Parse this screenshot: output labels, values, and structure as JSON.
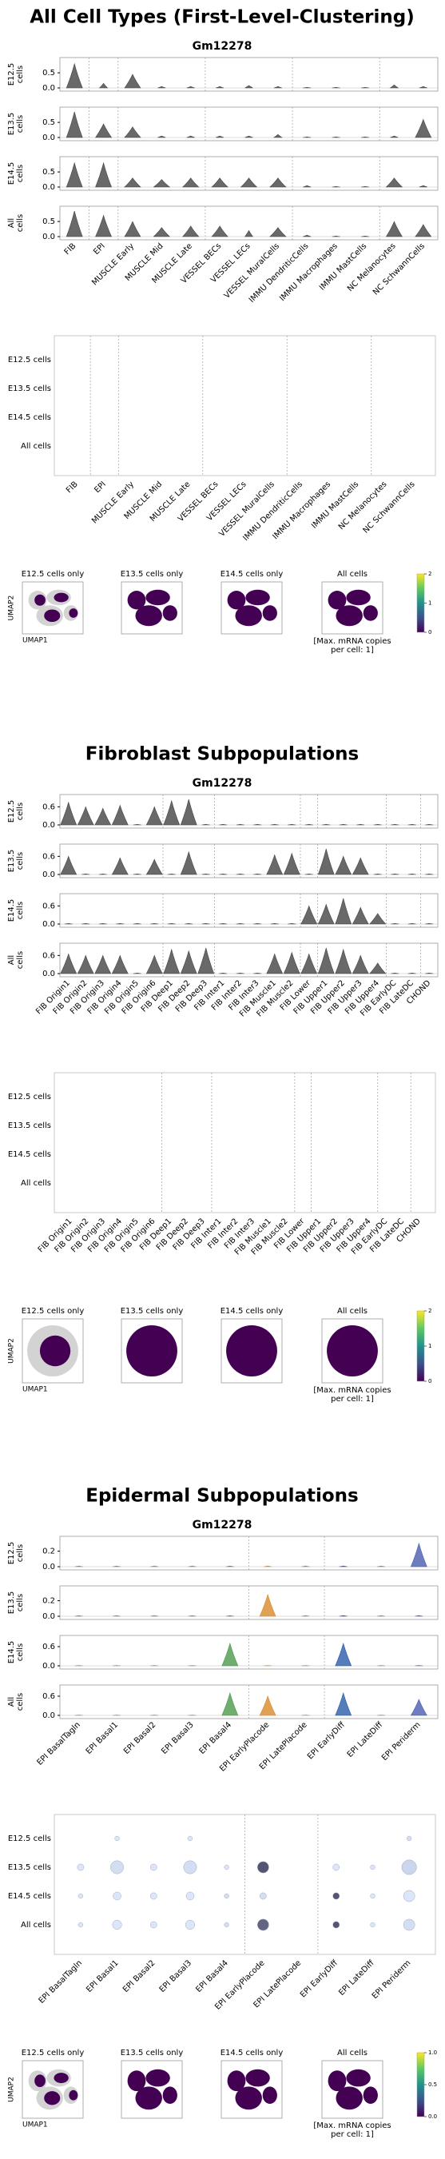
{
  "sections": [
    {
      "title": "All Cell Types (First-Level-Clustering)",
      "gene": "Gm12278",
      "violin": {
        "color": "#444444",
        "categories": [
          "FIB",
          "EPI",
          "MUSCLE Early",
          "MUSCLE Mid",
          "MUSCLE Late",
          "VESSEL BECs",
          "VESSEL LECs",
          "VESSEL MuralCells",
          "IMMU DendriticCells",
          "IMMU Macrophages",
          "IMMU MastCells",
          "NC Melanocytes",
          "NC SchwannCells"
        ],
        "rows": [
          {
            "label": [
              "E12.5",
              "cells"
            ],
            "ylim": [
              0,
              0.9
            ],
            "yticks": [
              {
                "value": 0,
                "label": "0.0"
              },
              0.5
            ],
            "values": [
              0.8,
              0.15,
              0.45,
              0.05,
              0.05,
              0.05,
              0.08,
              0.05,
              0.02,
              0.02,
              0.02,
              0.1,
              0.05
            ]
          },
          {
            "label": [
              "E13.5",
              "cells"
            ],
            "ylim": [
              0,
              0.9
            ],
            "yticks": [
              {
                "value": 0,
                "label": "0.0"
              },
              0.5
            ],
            "values": [
              0.85,
              0.45,
              0.35,
              0.05,
              0.05,
              0.05,
              0.05,
              0.1,
              0.02,
              0.02,
              0.02,
              0.05,
              0.6
            ]
          },
          {
            "label": [
              "E14.5",
              "cells"
            ],
            "ylim": [
              0,
              0.9
            ],
            "yticks": [
              {
                "value": 0,
                "label": "0.0"
              },
              0.5
            ],
            "values": [
              0.8,
              0.8,
              0.3,
              0.25,
              0.3,
              0.3,
              0.3,
              0.3,
              0.05,
              0.02,
              0.02,
              0.3,
              0.05
            ]
          },
          {
            "label": [
              "All",
              "cells"
            ],
            "ylim": [
              0,
              0.9
            ],
            "yticks": [
              {
                "value": 0,
                "label": "0.0"
              },
              0.5
            ],
            "values": [
              0.85,
              0.7,
              0.5,
              0.3,
              0.35,
              0.35,
              0.2,
              0.3,
              0.05,
              0.02,
              0.02,
              0.5,
              0.4
            ]
          }
        ]
      },
      "dotplot": {
        "rows": [
          "E12.5 cells",
          "E13.5 cells",
          "E14.5 cells",
          "All cells"
        ],
        "categories": [
          "FIB",
          "EPI",
          "MUSCLE Early",
          "MUSCLE Mid",
          "MUSCLE Late",
          "VESSEL BECs",
          "VESSEL LECs",
          "VESSEL MuralCells",
          "IMMU DendriticCells",
          "IMMU Macrophages",
          "IMMU MastCells",
          "NC Melanocytes",
          "NC SchwannCells"
        ]
      },
      "umap": {
        "panels": [
          "E12.5 cells only",
          "E13.5 cells only",
          "E14.5 cells only",
          "All cells"
        ],
        "xlabel": "UMAP1",
        "ylabel": "UMAP2",
        "colorbar_lim": [
          0,
          2
        ],
        "colorbar_ticks": [
          0,
          1,
          2
        ],
        "note": [
          "[Max. mRNA copies",
          "per cell: 1]"
        ]
      }
    },
    {
      "title": "Fibroblast Subpopulations",
      "gene": "Gm12278",
      "violin": {
        "color": "#444444",
        "categories": [
          "FIB Origin1",
          "FIB Origin2",
          "FIB Origin3",
          "FIB Origin4",
          "FIB Origin5",
          "FIB Origin6",
          "FIB Deep1",
          "FIB Deep2",
          "FIB Deep3",
          "FIB Inter1",
          "FIB Inter2",
          "FIB Inter3",
          "FIB Muscle1",
          "FIB Muscle2",
          "FIB Lower",
          "FIB Upper1",
          "FIB Upper2",
          "FIB Upper3",
          "FIB Upper4",
          "FIB EarlyDC",
          "FIB LateDC",
          "CHOND"
        ],
        "rows": [
          {
            "label": [
              "E12.5",
              "cells"
            ],
            "ylim": [
              0,
              0.9
            ],
            "yticks": [
              {
                "value": 0,
                "label": "0.0"
              },
              0.6
            ],
            "values": [
              0.75,
              0.6,
              0.55,
              0.65,
              0.02,
              0.6,
              0.8,
              0.85,
              0.02,
              0.02,
              0.02,
              0.02,
              0.02,
              0.02,
              0.02,
              0.02,
              0.02,
              0.02,
              0.02,
              0.02,
              0.02,
              0.02
            ]
          },
          {
            "label": [
              "E13.5",
              "cells"
            ],
            "ylim": [
              0,
              0.9
            ],
            "yticks": [
              {
                "value": 0,
                "label": "0.0"
              },
              0.6
            ],
            "values": [
              0.6,
              0.02,
              0.02,
              0.55,
              0.02,
              0.5,
              0.02,
              0.75,
              0.02,
              0.02,
              0.02,
              0.02,
              0.65,
              0.7,
              0.02,
              0.85,
              0.6,
              0.55,
              0.02,
              0.02,
              0.02,
              0.02
            ]
          },
          {
            "label": [
              "E14.5",
              "cells"
            ],
            "ylim": [
              0,
              0.9
            ],
            "yticks": [
              {
                "value": 0,
                "label": "0.0"
              },
              0.6
            ],
            "values": [
              0.02,
              0.02,
              0.02,
              0.02,
              0.02,
              0.02,
              0.02,
              0.02,
              0.02,
              0.02,
              0.02,
              0.02,
              0.02,
              0.02,
              0.6,
              0.65,
              0.85,
              0.55,
              0.35,
              0.02,
              0.02,
              0.02
            ]
          },
          {
            "label": [
              "All",
              "cells"
            ],
            "ylim": [
              0,
              0.9
            ],
            "yticks": [
              {
                "value": 0,
                "label": "0.0"
              },
              0.6
            ],
            "values": [
              0.65,
              0.6,
              0.6,
              0.6,
              0.02,
              0.6,
              0.8,
              0.75,
              0.85,
              0.02,
              0.02,
              0.02,
              0.65,
              0.7,
              0.65,
              0.85,
              0.8,
              0.6,
              0.35,
              0.02,
              0.02,
              0.02
            ]
          }
        ]
      },
      "dotplot": {
        "rows": [
          "E12.5 cells",
          "E13.5 cells",
          "E14.5 cells",
          "All cells"
        ],
        "categories": [
          "FIB Origin1",
          "FIB Origin2",
          "FIB Origin3",
          "FIB Origin4",
          "FIB Origin5",
          "FIB Origin6",
          "FIB Deep1",
          "FIB Deep2",
          "FIB Deep3",
          "FIB Inter1",
          "FIB Inter2",
          "FIB Inter3",
          "FIB Muscle1",
          "FIB Muscle2",
          "FIB Lower",
          "FIB Upper1",
          "FIB Upper2",
          "FIB Upper3",
          "FIB Upper4",
          "FIB EarlyDC",
          "FIB LateDC",
          "CHOND"
        ]
      },
      "umap": {
        "panels": [
          "E12.5 cells only",
          "E13.5 cells only",
          "E14.5 cells only",
          "All cells"
        ],
        "xlabel": "UMAP1",
        "ylabel": "UMAP2",
        "colorbar_lim": [
          0,
          2
        ],
        "colorbar_ticks": [
          0,
          1,
          2
        ],
        "note": [
          "[Max. mRNA copies",
          "per cell: 1]"
        ]
      }
    },
    {
      "title": "Epidermal Subpopulations",
      "gene": "Gm12278",
      "violin": {
        "color": "#888888",
        "colors": [
          "#888888",
          "#888888",
          "#888888",
          "#888888",
          "#4c9a4c",
          "#d9892b",
          "#888888",
          "#2a5caa",
          "#888888",
          "#4a5db0"
        ],
        "categories": [
          "EPI BasalTagln",
          "EPI Basal1",
          "EPI Basal2",
          "EPI Basal3",
          "EPI Basal4",
          "EPI EarlyPlacode",
          "EPI LatePlacode",
          "EPI EarlyDiff",
          "EPI LateDiff",
          "EPI Periderm"
        ],
        "rows": [
          {
            "label": [
              "E12.5",
              "cells"
            ],
            "ylim": [
              0,
              0.35
            ],
            "yticks": [
              {
                "value": 0,
                "label": "0.0"
              },
              0.2
            ],
            "values": [
              0.01,
              0.01,
              0.01,
              0.01,
              0.01,
              0.01,
              0.01,
              0.01,
              0.01,
              0.3
            ]
          },
          {
            "label": [
              "E13.5",
              "cells"
            ],
            "ylim": [
              0,
              0.35
            ],
            "yticks": [
              {
                "value": 0,
                "label": "0.0"
              },
              0.2
            ],
            "values": [
              0.01,
              0.01,
              0.01,
              0.01,
              0.01,
              0.28,
              0.01,
              0.01,
              0.01,
              0.01
            ]
          },
          {
            "label": [
              "E14.5",
              "cells"
            ],
            "ylim": [
              0,
              0.85
            ],
            "yticks": [
              {
                "value": 0,
                "label": "0.0"
              },
              0.6
            ],
            "values": [
              0.01,
              0.01,
              0.01,
              0.01,
              0.7,
              0.01,
              0.01,
              0.7,
              0.01,
              0.01
            ]
          },
          {
            "label": [
              "All",
              "cells"
            ],
            "ylim": [
              0,
              0.85
            ],
            "yticks": [
              {
                "value": 0,
                "label": "0.0"
              },
              0.6
            ],
            "values": [
              0.01,
              0.01,
              0.01,
              0.01,
              0.7,
              0.6,
              0.01,
              0.7,
              0.01,
              0.5
            ]
          }
        ]
      },
      "dotplot": {
        "rows": [
          "E12.5 cells",
          "E13.5 cells",
          "E14.5 cells",
          "All cells"
        ],
        "categories": [
          "EPI BasalTagln",
          "EPI Basal1",
          "EPI Basal2",
          "EPI Basal3",
          "EPI Basal4",
          "EPI EarlyPlacode",
          "EPI LatePlacode",
          "EPI EarlyDiff",
          "EPI LateDiff",
          "EPI Periderm"
        ],
        "sizes": [
          [
            0,
            0.05,
            0,
            0.05,
            0,
            0,
            0,
            0,
            0,
            0.05
          ],
          [
            0.1,
            0.4,
            0.1,
            0.4,
            0.05,
            0.3,
            0,
            0.1,
            0.05,
            0.5
          ],
          [
            0.05,
            0.15,
            0.1,
            0.15,
            0.05,
            0.1,
            0,
            0.1,
            0.05,
            0.3
          ],
          [
            0.05,
            0.2,
            0.1,
            0.2,
            0.05,
            0.3,
            0,
            0.1,
            0.05,
            0.3
          ]
        ],
        "means": [
          [
            0.05,
            0.05,
            0.05,
            0.05,
            0.05,
            0.05,
            0.05,
            0.05,
            0.05,
            0.1
          ],
          [
            0.05,
            0.1,
            0.05,
            0.1,
            0.05,
            0.9,
            0.05,
            0.05,
            0.05,
            0.15
          ],
          [
            0.05,
            0.05,
            0.05,
            0.05,
            0.1,
            0.1,
            0.05,
            0.9,
            0.05,
            0.05
          ],
          [
            0.05,
            0.05,
            0.05,
            0.05,
            0.1,
            0.8,
            0.05,
            0.9,
            0.05,
            0.1
          ]
        ]
      },
      "umap": {
        "panels": [
          "E12.5 cells only",
          "E13.5 cells only",
          "E14.5 cells only",
          "All cells"
        ],
        "xlabel": "UMAP1",
        "ylabel": "UMAP2",
        "colorbar_lim": [
          0,
          1
        ],
        "colorbar_ticks": [
          {
            "value": 0,
            "label": "0.0"
          },
          0.5,
          {
            "value": 1,
            "label": "1.0"
          }
        ],
        "note": [
          "[Max. mRNA copies",
          "per cell: 1]"
        ]
      }
    }
  ]
}
